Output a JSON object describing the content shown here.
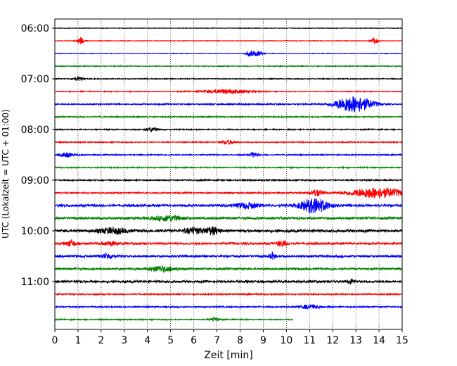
{
  "chart_data": {
    "type": "line",
    "chart_kind": "helicorder",
    "xlabel": "Zeit  [min]",
    "ylabel": "UTC (Lokalzeit = UTC + 01:00)",
    "xlim": [
      0,
      15
    ],
    "x_ticks": [
      "0",
      "1",
      "2",
      "3",
      "4",
      "5",
      "6",
      "7",
      "8",
      "9",
      "10",
      "11",
      "12",
      "13",
      "14",
      "15"
    ],
    "y_ticks": [
      "06:00",
      "07:00",
      "08:00",
      "09:00",
      "10:00",
      "11:00"
    ],
    "grid": "vertical-dotted",
    "trace_colors": [
      "#000000",
      "#ff0000",
      "#0000ff",
      "#008000"
    ],
    "traces": [
      {
        "start": "06:00",
        "color": "#000000",
        "amplitude": 0.05,
        "end_min": 15,
        "events": []
      },
      {
        "start": "06:15",
        "color": "#ff0000",
        "amplitude": 0.05,
        "end_min": 15,
        "events": [
          {
            "t": 1.1,
            "amp": 0.55,
            "dur": 0.15
          },
          {
            "t": 13.8,
            "amp": 0.5,
            "dur": 0.15
          }
        ]
      },
      {
        "start": "06:30",
        "color": "#0000ff",
        "amplitude": 0.05,
        "end_min": 15,
        "events": [
          {
            "t": 8.45,
            "amp": 0.45,
            "dur": 0.2
          },
          {
            "t": 8.8,
            "amp": 0.35,
            "dur": 0.2
          }
        ]
      },
      {
        "start": "06:45",
        "color": "#008000",
        "amplitude": 0.08,
        "end_min": 15,
        "events": []
      },
      {
        "start": "07:00",
        "color": "#000000",
        "amplitude": 0.08,
        "end_min": 15,
        "events": [
          {
            "t": 1.0,
            "amp": 0.3,
            "dur": 0.2
          }
        ]
      },
      {
        "start": "07:15",
        "color": "#ff0000",
        "amplitude": 0.08,
        "end_min": 15,
        "events": [
          {
            "t": 7.4,
            "amp": 0.3,
            "dur": 1.0
          }
        ]
      },
      {
        "start": "07:30",
        "color": "#0000ff",
        "amplitude": 0.12,
        "end_min": 15,
        "events": [
          {
            "t": 13.1,
            "amp": 1.0,
            "dur": 0.7
          },
          {
            "t": 12.5,
            "amp": 0.5,
            "dur": 0.6
          }
        ]
      },
      {
        "start": "07:45",
        "color": "#008000",
        "amplitude": 0.1,
        "end_min": 15,
        "events": []
      },
      {
        "start": "08:00",
        "color": "#000000",
        "amplitude": 0.1,
        "end_min": 15,
        "events": [
          {
            "t": 4.2,
            "amp": 0.35,
            "dur": 0.25
          }
        ]
      },
      {
        "start": "08:15",
        "color": "#ff0000",
        "amplitude": 0.1,
        "end_min": 15,
        "events": [
          {
            "t": 7.5,
            "amp": 0.3,
            "dur": 0.3
          }
        ]
      },
      {
        "start": "08:30",
        "color": "#0000ff",
        "amplitude": 0.1,
        "end_min": 15,
        "events": [
          {
            "t": 0.5,
            "amp": 0.35,
            "dur": 0.3
          },
          {
            "t": 8.6,
            "amp": 0.45,
            "dur": 0.15
          }
        ]
      },
      {
        "start": "08:45",
        "color": "#008000",
        "amplitude": 0.1,
        "end_min": 15,
        "events": []
      },
      {
        "start": "09:00",
        "color": "#000000",
        "amplitude": 0.12,
        "end_min": 15,
        "events": []
      },
      {
        "start": "09:15",
        "color": "#ff0000",
        "amplitude": 0.12,
        "end_min": 15,
        "events": [
          {
            "t": 11.3,
            "amp": 0.5,
            "dur": 0.3
          },
          {
            "t": 13.9,
            "amp": 0.8,
            "dur": 1.2
          }
        ]
      },
      {
        "start": "09:30",
        "color": "#0000ff",
        "amplitude": 0.22,
        "end_min": 15,
        "events": [
          {
            "t": 11.2,
            "amp": 1.1,
            "dur": 0.6
          },
          {
            "t": 8.3,
            "amp": 0.4,
            "dur": 0.5
          }
        ]
      },
      {
        "start": "09:45",
        "color": "#008000",
        "amplitude": 0.22,
        "end_min": 15,
        "events": [
          {
            "t": 4.9,
            "amp": 0.4,
            "dur": 0.6
          }
        ]
      },
      {
        "start": "10:00",
        "color": "#000000",
        "amplitude": 0.25,
        "end_min": 15,
        "events": [
          {
            "t": 6.8,
            "amp": 0.55,
            "dur": 0.3
          },
          {
            "t": 2.5,
            "amp": 0.4,
            "dur": 0.6
          },
          {
            "t": 6.0,
            "amp": 0.45,
            "dur": 0.4
          }
        ]
      },
      {
        "start": "10:15",
        "color": "#ff0000",
        "amplitude": 0.2,
        "end_min": 15,
        "events": [
          {
            "t": 0.7,
            "amp": 0.45,
            "dur": 0.2
          },
          {
            "t": 9.8,
            "amp": 0.45,
            "dur": 0.2
          },
          {
            "t": 2.4,
            "amp": 0.3,
            "dur": 0.3
          }
        ]
      },
      {
        "start": "10:30",
        "color": "#0000ff",
        "amplitude": 0.2,
        "end_min": 15,
        "events": [
          {
            "t": 9.4,
            "amp": 0.5,
            "dur": 0.12
          },
          {
            "t": 2.3,
            "amp": 0.35,
            "dur": 0.3
          }
        ]
      },
      {
        "start": "10:45",
        "color": "#008000",
        "amplitude": 0.18,
        "end_min": 15,
        "events": [
          {
            "t": 4.6,
            "amp": 0.4,
            "dur": 0.6
          }
        ]
      },
      {
        "start": "11:00",
        "color": "#000000",
        "amplitude": 0.22,
        "end_min": 15,
        "events": [
          {
            "t": 12.8,
            "amp": 0.35,
            "dur": 0.15
          }
        ]
      },
      {
        "start": "11:15",
        "color": "#ff0000",
        "amplitude": 0.12,
        "end_min": 15,
        "events": []
      },
      {
        "start": "11:30",
        "color": "#0000ff",
        "amplitude": 0.12,
        "end_min": 15,
        "events": [
          {
            "t": 11.0,
            "amp": 0.3,
            "dur": 0.5
          }
        ]
      },
      {
        "start": "11:45",
        "color": "#008000",
        "amplitude": 0.1,
        "end_min": 10.3,
        "events": [
          {
            "t": 6.9,
            "amp": 0.35,
            "dur": 0.15
          }
        ]
      }
    ]
  }
}
